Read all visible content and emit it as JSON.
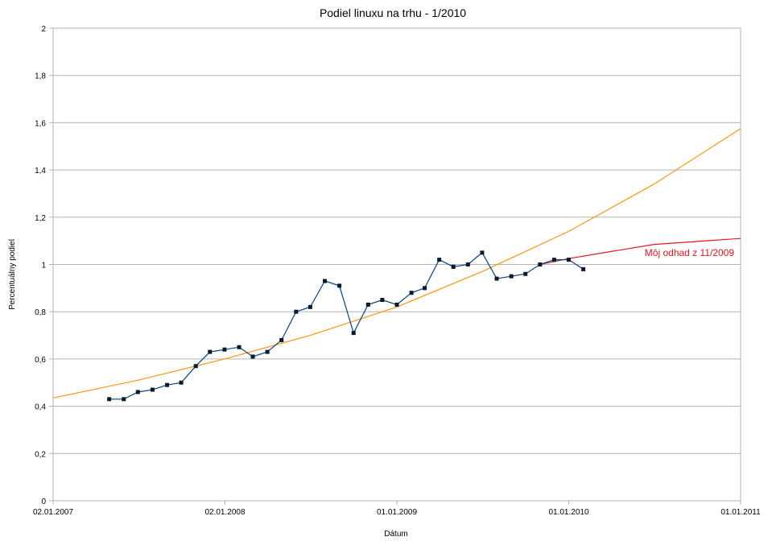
{
  "chart_data": {
    "type": "line",
    "title": "Podiel linuxu na trhu - 1/2010",
    "xlabel": "Dátum",
    "ylabel": "Percentuálny podiel",
    "xlim": [
      "2007-01-02",
      "2011-01-01"
    ],
    "ylim": [
      0,
      2
    ],
    "x_ticks": [
      "02.01.2007",
      "02.01.2008",
      "01.01.2009",
      "01.01.2010",
      "01.01.2011"
    ],
    "y_ticks": [
      "0",
      "0,2",
      "0,4",
      "0,6",
      "0,8",
      "1",
      "1,2",
      "1,4",
      "1,6",
      "1,8",
      "2"
    ],
    "grid": "horizontal",
    "colors": {
      "measured": "#004586",
      "marker": "#0b1a2a",
      "trend": "#ff950e",
      "estimate": "#e3161d",
      "grid": "#b3b3b3"
    },
    "series": [
      {
        "key": "measured",
        "x": [
          "2007-05-01",
          "2007-06-01",
          "2007-07-01",
          "2007-08-01",
          "2007-09-01",
          "2007-10-01",
          "2007-11-01",
          "2007-12-01",
          "2008-01-01",
          "2008-02-01",
          "2008-03-01",
          "2008-04-01",
          "2008-05-01",
          "2008-06-01",
          "2008-07-01",
          "2008-08-01",
          "2008-09-01",
          "2008-10-01",
          "2008-11-01",
          "2008-12-01",
          "2009-01-01",
          "2009-02-01",
          "2009-03-01",
          "2009-04-01",
          "2009-05-01",
          "2009-06-01",
          "2009-07-01",
          "2009-08-01",
          "2009-09-01",
          "2009-10-01",
          "2009-11-01",
          "2009-12-01",
          "2010-01-01",
          "2010-02-01"
        ],
        "values": [
          0.43,
          0.43,
          0.46,
          0.47,
          0.49,
          0.5,
          0.57,
          0.63,
          0.64,
          0.65,
          0.61,
          0.63,
          0.68,
          0.8,
          0.82,
          0.93,
          0.91,
          0.71,
          0.83,
          0.85,
          0.83,
          0.88,
          0.9,
          1.02,
          0.99,
          1.0,
          1.05,
          0.94,
          0.95,
          0.96,
          1.0,
          1.02,
          1.02,
          0.98
        ]
      },
      {
        "key": "trend",
        "x": [
          "2007-01-02",
          "2007-07-01",
          "2008-01-01",
          "2008-07-01",
          "2009-01-01",
          "2009-07-01",
          "2010-01-01",
          "2010-07-01",
          "2011-01-01"
        ],
        "values": [
          0.435,
          0.51,
          0.6,
          0.7,
          0.82,
          0.97,
          1.14,
          1.34,
          1.575
        ]
      },
      {
        "key": "estimate",
        "x": [
          "2009-11-01",
          "2010-01-01",
          "2010-04-01",
          "2010-07-01",
          "2011-01-01"
        ],
        "values": [
          1.0,
          1.025,
          1.055,
          1.085,
          1.11
        ]
      }
    ],
    "annotations": [
      {
        "text": "Môj odhad z 11/2009",
        "series": "estimate"
      }
    ]
  }
}
